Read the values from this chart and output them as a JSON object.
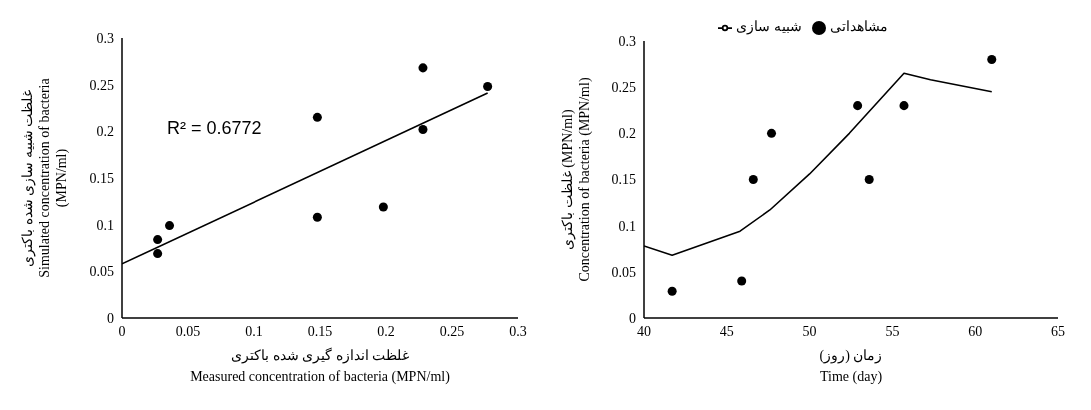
{
  "chart_data": [
    {
      "type": "scatter",
      "xlabel": "غلظت اندازه گیری شده باکتری\nMeasured concentration of bacteria (MPN/ml)",
      "ylabel": "غلظت  شبیه سازی شده باکتری\nSimulated concentration of bacteria\n(MPN/ml)",
      "annotations": [
        "R² = 0.6772"
      ],
      "xlim": [
        0,
        0.3
      ],
      "xticks": [
        0,
        0.05,
        0.1,
        0.15,
        0.2,
        0.25,
        0.3
      ],
      "ylim": [
        0,
        0.3
      ],
      "yticks": [
        0,
        0.05,
        0.1,
        0.15,
        0.2,
        0.25,
        0.3
      ],
      "grid": false,
      "legend": false,
      "marker": "circle",
      "x": [
        0.027,
        0.027,
        0.036,
        0.148,
        0.148,
        0.198,
        0.228,
        0.228,
        0.277
      ],
      "series": [
        {
          "color": "#000000",
          "values": [
            0.084,
            0.069,
            0.099,
            0.215,
            0.108,
            0.119,
            0.268,
            0.202,
            0.248
          ]
        },
        {
          "type": "line",
          "color": "#000000",
          "marker": "none",
          "x": [
            0,
            0.277
          ],
          "values": [
            0.058,
            0.241
          ]
        }
      ]
    },
    {
      "type": "scatter",
      "xlabel": "زمان (روز)\nTime (day)",
      "ylabel": "غلظت باکتری (MPN/ml)\nConcentration of bacteria (MPN/ml)",
      "xlim": [
        40,
        65
      ],
      "xticks": [
        40,
        45,
        50,
        55,
        60,
        65
      ],
      "ylim": [
        0,
        0.3
      ],
      "yticks": [
        0,
        0.05,
        0.1,
        0.15,
        0.2,
        0.25,
        0.3
      ],
      "grid": false,
      "legend": "top",
      "marker": "circle",
      "series": [
        {
          "name": "شبیه سازی",
          "type": "line",
          "color": "#000000",
          "marker": "none",
          "x": [
            40,
            41.7,
            45.8,
            47.6,
            50,
            52.4,
            55.7,
            57.3,
            61
          ],
          "values": [
            0.078,
            0.068,
            0.094,
            0.117,
            0.156,
            0.2,
            0.265,
            0.258,
            0.245
          ]
        },
        {
          "name": "مشاهداتی",
          "color": "#000000",
          "x": [
            41.7,
            45.9,
            46.6,
            47.7,
            52.9,
            53.6,
            55.7,
            61
          ],
          "values": [
            0.029,
            0.04,
            0.15,
            0.2,
            0.23,
            0.15,
            0.23,
            0.28
          ]
        }
      ]
    }
  ]
}
